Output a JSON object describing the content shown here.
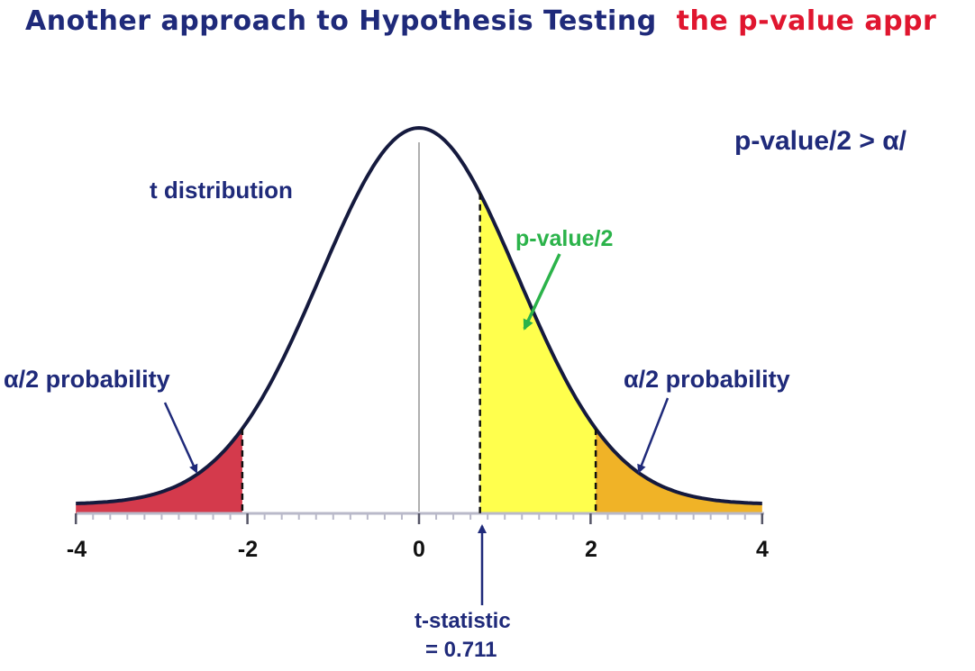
{
  "header": {
    "title": "Another approach to Hypothesis Testing",
    "subtitle": "the p-value appr"
  },
  "formula": {
    "text": "p-value/2   >  α/"
  },
  "labels": {
    "distribution": "t distribution",
    "pvalue": "p-value/2",
    "alpha_left": "α/2 probability",
    "alpha_right": "α/2 probability",
    "tstat_line1": "t-statistic",
    "tstat_line2": "= 0.711"
  },
  "axis": {
    "tick_labels": [
      "-4",
      "-2",
      "0",
      "2",
      "4"
    ]
  },
  "colors": {
    "navy": "#1f2a7a",
    "red": "#e0162f",
    "green": "#2bb34a",
    "alpha_left_fill": "#d43a4c",
    "pvalue_fill": "#ffff4d",
    "alpha_right_fill": "#f0b327",
    "axis": "#b9b9c9"
  },
  "diagram": {
    "x_range": [
      -4,
      4
    ],
    "t_statistic": 0.711,
    "critical_value": 2.06
  }
}
